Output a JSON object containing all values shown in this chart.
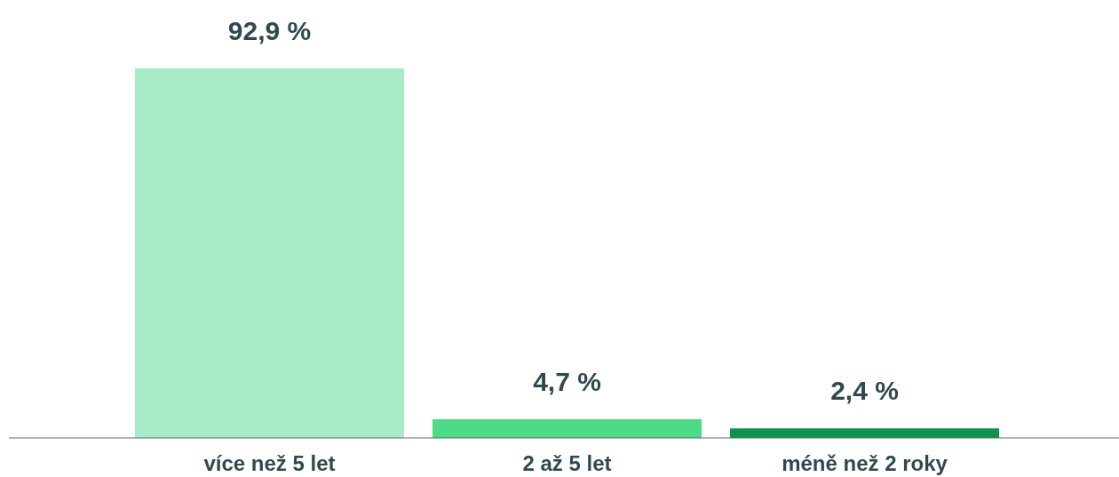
{
  "chart_data": {
    "type": "bar",
    "categories": [
      "více než 5 let",
      "2 až 5 let",
      "méně než 2 roky"
    ],
    "values": [
      92.9,
      4.7,
      2.4
    ],
    "colors": [
      "#a8ebc9",
      "#4cdb87",
      "#0a9447"
    ],
    "value_labels": [
      "92,9 %",
      "4,7 %",
      "2,4 %"
    ]
  }
}
